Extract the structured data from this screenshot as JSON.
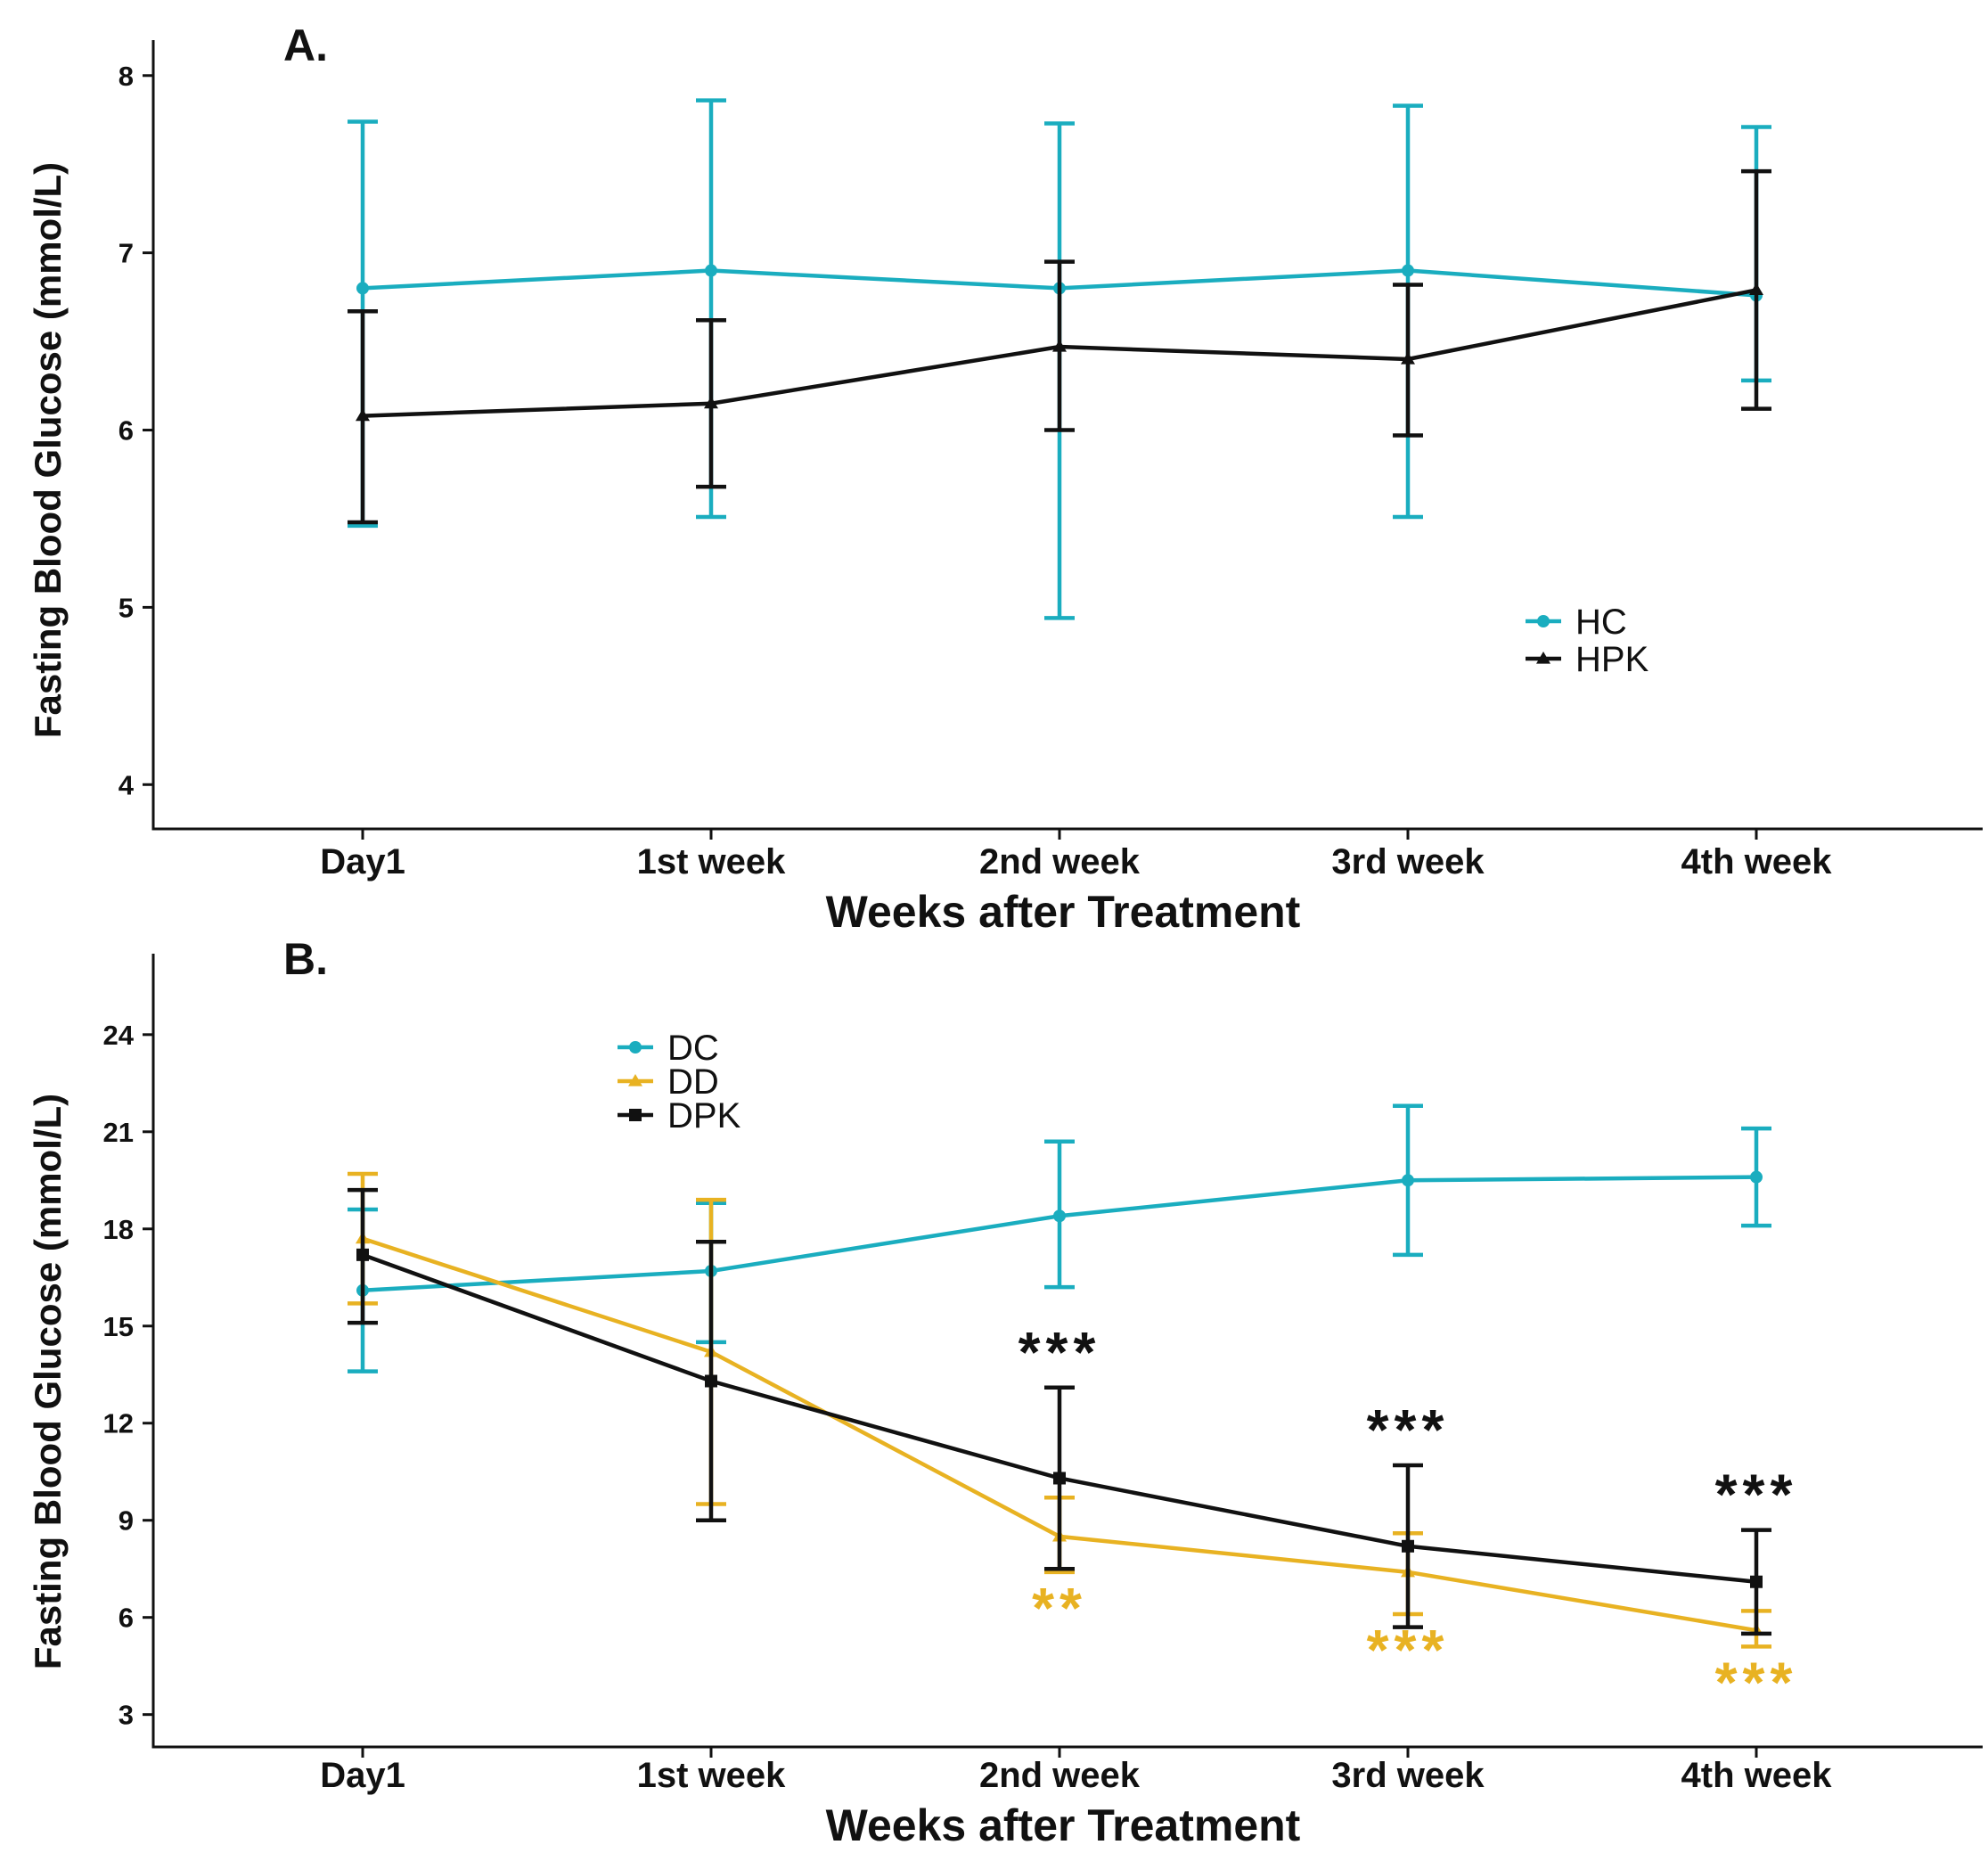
{
  "chart_data": [
    {
      "type": "line",
      "panel_label": "A.",
      "categories": [
        "Day1",
        "1st week",
        "2nd week",
        "3rd week",
        "4th week"
      ],
      "xlabel": "Weeks after Treatment",
      "ylabel": "Fasting Blood Glucose (mmol/L)",
      "ylim": [
        3.75,
        8.2
      ],
      "yticks": [
        4,
        5,
        6,
        7,
        8
      ],
      "legend_position": "right",
      "series": [
        {
          "name": "HC",
          "color": "#1aadbf",
          "marker": "circle",
          "values": [
            6.8,
            6.9,
            6.8,
            6.9,
            6.76
          ],
          "err_low": [
            5.46,
            5.51,
            4.94,
            5.51,
            6.28
          ],
          "err_high": [
            7.74,
            7.86,
            7.73,
            7.83,
            7.71
          ]
        },
        {
          "name": "HPK",
          "color": "#111111",
          "marker": "triangle",
          "values": [
            6.08,
            6.15,
            6.47,
            6.4,
            6.79
          ],
          "err_low": [
            5.48,
            5.68,
            6.0,
            5.97,
            6.12
          ],
          "err_high": [
            6.67,
            6.62,
            6.95,
            6.82,
            7.46
          ]
        }
      ],
      "annotations": []
    },
    {
      "type": "line",
      "panel_label": "B.",
      "categories": [
        "Day1",
        "1st week",
        "2nd week",
        "3rd week",
        "4th week"
      ],
      "xlabel": "Weeks after Treatment",
      "ylabel": "Fasting Blood Glucose (mmol/L)",
      "ylim": [
        2.0,
        26.5
      ],
      "yticks": [
        3,
        6,
        9,
        12,
        15,
        18,
        21,
        24
      ],
      "legend_position": "top-left",
      "series": [
        {
          "name": "DC",
          "color": "#1aadbf",
          "marker": "circle",
          "values": [
            16.1,
            16.7,
            18.4,
            19.5,
            19.6
          ],
          "err_low": [
            13.6,
            14.5,
            16.2,
            17.2,
            18.1
          ],
          "err_high": [
            18.6,
            18.8,
            20.7,
            21.8,
            21.1
          ]
        },
        {
          "name": "DD",
          "color": "#e8b222",
          "marker": "triangle",
          "values": [
            17.7,
            14.2,
            8.5,
            7.4,
            5.6
          ],
          "err_low": [
            15.7,
            9.5,
            7.4,
            6.1,
            5.1
          ],
          "err_high": [
            19.7,
            18.9,
            9.7,
            8.6,
            6.2
          ]
        },
        {
          "name": "DPK",
          "color": "#111111",
          "marker": "square",
          "values": [
            17.2,
            13.3,
            10.3,
            8.2,
            7.1
          ],
          "err_low": [
            15.1,
            9.0,
            7.5,
            5.7,
            5.5
          ],
          "err_high": [
            19.2,
            17.6,
            13.1,
            10.7,
            8.7
          ]
        }
      ],
      "annotations": [
        {
          "category_index": 2,
          "text": "***",
          "color": "#111111",
          "y": 13.1,
          "placement": "above"
        },
        {
          "category_index": 3,
          "text": "***",
          "color": "#111111",
          "y": 10.7,
          "placement": "above"
        },
        {
          "category_index": 4,
          "text": "***",
          "color": "#111111",
          "y": 8.7,
          "placement": "above"
        },
        {
          "category_index": 2,
          "text": "**",
          "color": "#e8b222",
          "y": 7.4,
          "placement": "below"
        },
        {
          "category_index": 3,
          "text": "***",
          "color": "#e8b222",
          "y": 6.1,
          "placement": "below"
        },
        {
          "category_index": 4,
          "text": "***",
          "color": "#e8b222",
          "y": 5.1,
          "placement": "below"
        }
      ]
    }
  ]
}
